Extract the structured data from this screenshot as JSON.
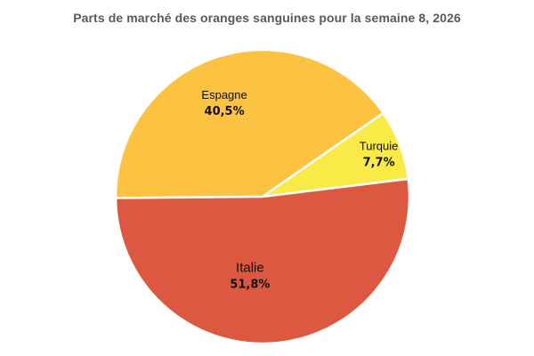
{
  "chart_data": {
    "type": "pie",
    "title": "Parts de marché des oranges sanguines pour la semaine 8, 2026",
    "slices": [
      {
        "label": "Espagne",
        "value": 40.5,
        "value_label": "40,5%",
        "color": "#FCC343"
      },
      {
        "label": "Turquie",
        "value": 7.7,
        "value_label": "7,7%",
        "color": "#FAEA47"
      },
      {
        "label": "Italie",
        "value": 51.8,
        "value_label": "51,8%",
        "color": "#DC5840"
      }
    ],
    "legend": "none",
    "data_labels": "inside"
  }
}
